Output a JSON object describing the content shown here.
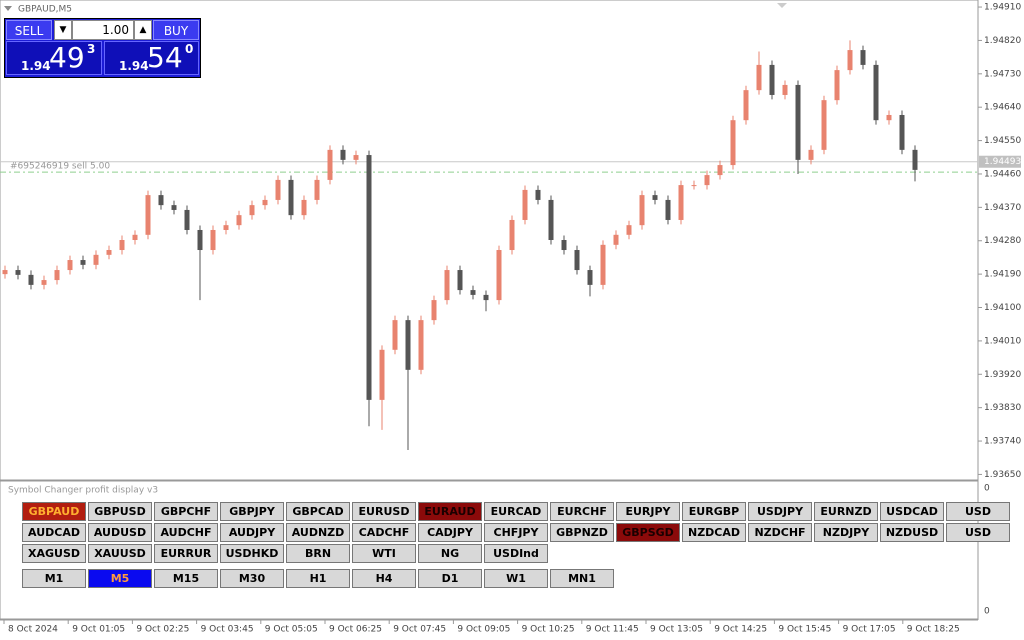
{
  "window": {
    "title": "GBPAUD,M5"
  },
  "trade_panel": {
    "sell": "SELL",
    "buy": "BUY",
    "lot": "1.00",
    "bid": {
      "big": "1.94",
      "pips": "49",
      "point": "3"
    },
    "ask": {
      "big": "1.94",
      "pips": "54",
      "point": "0"
    }
  },
  "chart_data": {
    "type": "candlestick",
    "up_color": "#e8836f",
    "down_color": "#555555",
    "ylim": [
      1.93635,
      1.94929
    ],
    "yticks": [
      {
        "value": 1.9491,
        "label": "1.94910"
      },
      {
        "value": 1.9482,
        "label": "1.94820"
      },
      {
        "value": 1.9473,
        "label": "1.94730"
      },
      {
        "value": 1.9464,
        "label": "1.94640"
      },
      {
        "value": 1.9455,
        "label": "1.94550"
      },
      {
        "value": 1.9446,
        "label": "1.94460"
      },
      {
        "value": 1.9437,
        "label": "1.94370"
      },
      {
        "value": 1.9428,
        "label": "1.94280"
      },
      {
        "value": 1.9419,
        "label": "1.94190"
      },
      {
        "value": 1.941,
        "label": "1.94100"
      },
      {
        "value": 1.9401,
        "label": "1.94010"
      },
      {
        "value": 1.9392,
        "label": "1.93920"
      },
      {
        "value": 1.9383,
        "label": "1.93830"
      },
      {
        "value": 1.9374,
        "label": "1.93740"
      },
      {
        "value": 1.9365,
        "label": "1.93650"
      }
    ],
    "time_labels": [
      "8 Oct 2024",
      "9 Oct 01:05",
      "9 Oct 02:25",
      "9 Oct 03:45",
      "9 Oct 05:05",
      "9 Oct 06:25",
      "9 Oct 07:45",
      "9 Oct 09:05",
      "9 Oct 10:25",
      "9 Oct 11:45",
      "9 Oct 13:05",
      "9 Oct 14:25",
      "9 Oct 15:45",
      "9 Oct 17:05",
      "9 Oct 18:25"
    ],
    "current_price": {
      "value": 1.94493,
      "label": "1.94493"
    },
    "order_line": {
      "value": 1.94465,
      "label": "#695246919 sell 5.00"
    },
    "open": [
      1.9419,
      1.94201,
      1.94188,
      1.94161,
      1.94174,
      1.94201,
      1.94228,
      1.94215,
      1.94242,
      1.94255,
      1.94282,
      1.94296,
      1.94403,
      1.94376,
      1.94363,
      1.94309,
      1.94255,
      1.94309,
      1.94322,
      1.94349,
      1.94376,
      1.9439,
      1.94444,
      1.94349,
      1.9439,
      1.94444,
      1.94525,
      1.94498,
      1.94511,
      1.93851,
      1.93986,
      1.94066,
      1.93932,
      1.94066,
      1.9412,
      1.94201,
      1.94147,
      1.94134,
      1.9412,
      1.94255,
      1.94336,
      1.94417,
      1.9439,
      1.94282,
      1.94255,
      1.94201,
      1.94161,
      1.94269,
      1.94296,
      1.94322,
      1.94403,
      1.9439,
      1.94336,
      1.9443,
      1.9443,
      1.94457,
      1.94484,
      1.94605,
      1.94686,
      1.94754,
      1.94673,
      1.947,
      1.94498,
      1.94525,
      1.94659,
      1.9474,
      1.94794,
      1.94754,
      1.94605,
      1.94619,
      1.94525
    ],
    "high": [
      1.94213,
      1.94213,
      1.942,
      1.94186,
      1.94213,
      1.9424,
      1.9424,
      1.94254,
      1.94267,
      1.94294,
      1.94308,
      1.94415,
      1.94415,
      1.94388,
      1.94375,
      1.94321,
      1.94321,
      1.94334,
      1.94361,
      1.94388,
      1.94402,
      1.94456,
      1.94456,
      1.94402,
      1.94456,
      1.94537,
      1.94537,
      1.94523,
      1.94523,
      1.93998,
      1.94078,
      1.94078,
      1.94078,
      1.94132,
      1.94213,
      1.94213,
      1.94159,
      1.94146,
      1.94267,
      1.94348,
      1.94429,
      1.94429,
      1.94402,
      1.94294,
      1.94267,
      1.94213,
      1.94281,
      1.94308,
      1.94334,
      1.94415,
      1.94415,
      1.94402,
      1.94442,
      1.94442,
      1.94469,
      1.94496,
      1.94617,
      1.94698,
      1.9479,
      1.94766,
      1.94712,
      1.94712,
      1.94537,
      1.94671,
      1.94752,
      1.9482,
      1.94806,
      1.94766,
      1.94631,
      1.94631,
      1.94537
    ],
    "low": [
      1.94178,
      1.94176,
      1.94149,
      1.94149,
      1.94162,
      1.94189,
      1.94203,
      1.94203,
      1.9423,
      1.94243,
      1.9427,
      1.94284,
      1.94364,
      1.94351,
      1.94297,
      1.9412,
      1.94243,
      1.94297,
      1.9431,
      1.94337,
      1.94364,
      1.94378,
      1.94337,
      1.94337,
      1.94378,
      1.94432,
      1.94486,
      1.94486,
      1.9378,
      1.9377,
      1.93974,
      1.93716,
      1.9392,
      1.94054,
      1.94108,
      1.94135,
      1.94122,
      1.9409,
      1.94108,
      1.94243,
      1.94324,
      1.94378,
      1.9427,
      1.94243,
      1.94189,
      1.9413,
      1.94149,
      1.94257,
      1.94284,
      1.9431,
      1.94378,
      1.94324,
      1.94324,
      1.94418,
      1.94418,
      1.94445,
      1.94472,
      1.94593,
      1.94674,
      1.94661,
      1.94661,
      1.9446,
      1.94486,
      1.94513,
      1.94647,
      1.94728,
      1.94742,
      1.94593,
      1.94593,
      1.94513,
      1.9444
    ],
    "close": [
      1.94201,
      1.94188,
      1.94161,
      1.94174,
      1.94201,
      1.94228,
      1.94215,
      1.94242,
      1.94255,
      1.94282,
      1.94296,
      1.94403,
      1.94376,
      1.94363,
      1.94309,
      1.94255,
      1.94309,
      1.94322,
      1.94349,
      1.94376,
      1.9439,
      1.94444,
      1.94349,
      1.9439,
      1.94444,
      1.94525,
      1.94498,
      1.94511,
      1.93851,
      1.93986,
      1.94066,
      1.93932,
      1.94066,
      1.9412,
      1.94201,
      1.94147,
      1.94134,
      1.9412,
      1.94255,
      1.94336,
      1.94417,
      1.9439,
      1.94282,
      1.94255,
      1.94201,
      1.94161,
      1.94269,
      1.94296,
      1.94322,
      1.94403,
      1.9439,
      1.94336,
      1.9443,
      1.9443,
      1.94457,
      1.94484,
      1.94605,
      1.94686,
      1.94754,
      1.94673,
      1.947,
      1.94498,
      1.94525,
      1.94659,
      1.9474,
      1.94794,
      1.94754,
      1.94605,
      1.94619,
      1.94525,
      1.94471
    ]
  },
  "indicator_panel": {
    "title": "Symbol Changer profit display v3",
    "axis_labels": [
      "0",
      "0"
    ],
    "symbol_rows": [
      [
        "GBPAUD",
        "GBPUSD",
        "GBPCHF",
        "GBPJPY",
        "GBPCAD",
        "EURUSD",
        "EURAUD",
        "EURCAD",
        "EURCHF",
        "EURJPY",
        "EURGBP",
        "USDJPY",
        "EURNZD",
        "USDCAD",
        "USD"
      ],
      [
        "AUDCAD",
        "AUDUSD",
        "AUDCHF",
        "AUDJPY",
        "AUDNZD",
        "CADCHF",
        "CADJPY",
        "CHFJPY",
        "GBPNZD",
        "GBPSGD",
        "NZDCAD",
        "NZDCHF",
        "NZDJPY",
        "NZDUSD",
        "USD"
      ],
      [
        "XAGUSD",
        "XAUUSD",
        "EURRUR",
        "USDHKD",
        "BRN",
        "WTI",
        "NG",
        "USDInd"
      ]
    ],
    "timeframes": [
      "M1",
      "M5",
      "M15",
      "M30",
      "H1",
      "H4",
      "D1",
      "W1",
      "MN1"
    ]
  }
}
